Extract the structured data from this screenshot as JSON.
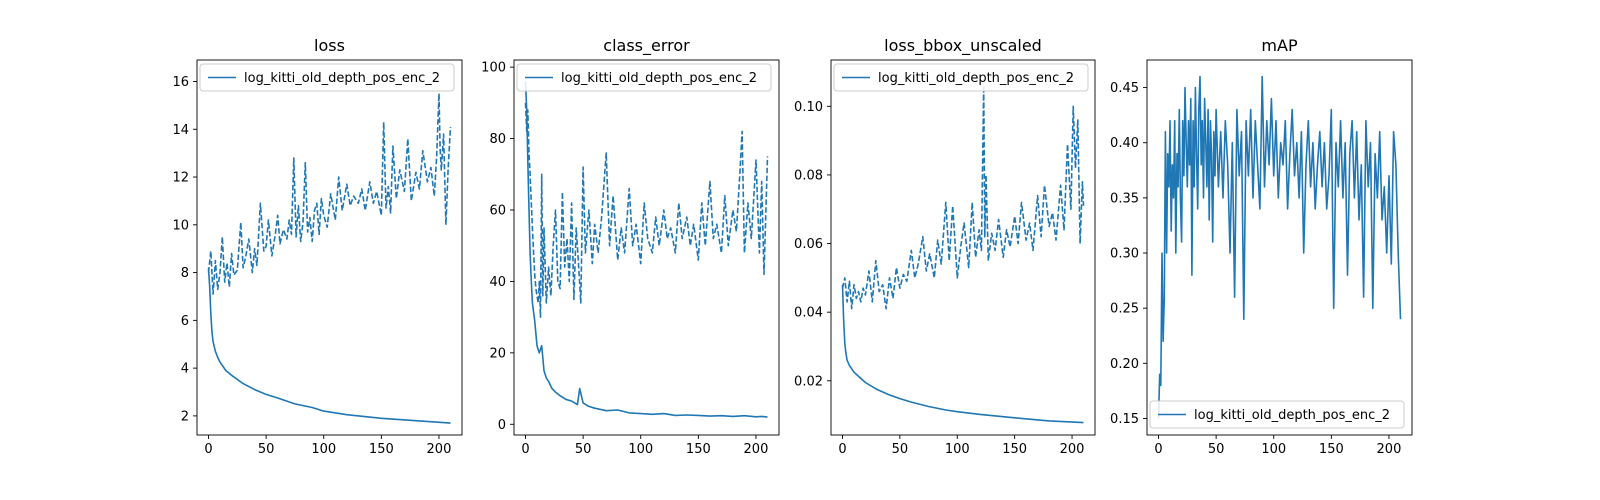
{
  "series_color": "#1f77b4",
  "chart_data": [
    {
      "type": "line",
      "title": "loss",
      "xlim": [
        -10,
        220
      ],
      "ylim": [
        1.2,
        16.9
      ],
      "xticks": [
        0,
        50,
        100,
        150,
        200
      ],
      "yticks": [
        2,
        4,
        6,
        8,
        10,
        12,
        14,
        16
      ],
      "legend": {
        "placement": "upper-left",
        "entries": [
          "log_kitti_old_depth_pos_enc_2"
        ]
      },
      "series": [
        {
          "name": "log_kitti_old_depth_pos_enc_2",
          "style": "solid",
          "x": [
            0,
            1,
            2,
            3,
            4,
            6,
            8,
            10,
            15,
            20,
            30,
            40,
            50,
            60,
            75,
            90,
            100,
            120,
            150,
            180,
            210
          ],
          "y": [
            8.2,
            7.4,
            6.3,
            5.5,
            5.1,
            4.7,
            4.45,
            4.25,
            3.9,
            3.7,
            3.35,
            3.1,
            2.9,
            2.75,
            2.5,
            2.35,
            2.2,
            2.05,
            1.9,
            1.8,
            1.7
          ]
        },
        {
          "name": "log_kitti_old_depth_pos_enc_2",
          "style": "dashed",
          "x": [
            0,
            2,
            4,
            6,
            8,
            10,
            12,
            14,
            16,
            18,
            20,
            22,
            25,
            28,
            30,
            32,
            35,
            38,
            40,
            42,
            45,
            48,
            50,
            52,
            55,
            58,
            60,
            62,
            65,
            68,
            70,
            72,
            74,
            76,
            78,
            80,
            82,
            84,
            86,
            88,
            90,
            92,
            94,
            96,
            98,
            100,
            103,
            106,
            110,
            113,
            116,
            120,
            123,
            126,
            130,
            133,
            136,
            140,
            143,
            146,
            150,
            152,
            154,
            156,
            158,
            160,
            163,
            166,
            170,
            173,
            176,
            180,
            183,
            186,
            190,
            193,
            196,
            198,
            200,
            201,
            202,
            204,
            206,
            208,
            210
          ],
          "y": [
            8.0,
            8.9,
            7.1,
            8.5,
            7.3,
            8.0,
            9.5,
            7.6,
            8.4,
            7.4,
            8.8,
            7.9,
            8.1,
            10.1,
            8.2,
            8.6,
            9.4,
            8.0,
            9.0,
            8.3,
            10.9,
            8.9,
            9.1,
            10.2,
            8.7,
            9.6,
            10.4,
            9.2,
            9.8,
            9.4,
            10.2,
            9.6,
            12.8,
            9.5,
            10.8,
            9.3,
            10.1,
            12.6,
            9.7,
            10.3,
            9.3,
            10.6,
            10.9,
            9.6,
            11.1,
            10.4,
            9.9,
            11.3,
            10.2,
            12.0,
            10.6,
            11.7,
            10.8,
            11.2,
            10.9,
            11.5,
            10.6,
            11.8,
            10.9,
            11.4,
            10.4,
            14.3,
            10.7,
            11.6,
            10.5,
            13.3,
            11.1,
            12.3,
            11.4,
            13.6,
            11.0,
            12.2,
            11.5,
            13.1,
            11.8,
            12.4,
            11.2,
            12.9,
            15.5,
            13.2,
            12.3,
            13.8,
            10.0,
            12.4,
            14.1
          ]
        }
      ]
    },
    {
      "type": "line",
      "title": "class_error",
      "xlim": [
        -10,
        220
      ],
      "ylim": [
        -3,
        102
      ],
      "xticks": [
        0,
        50,
        100,
        150,
        200
      ],
      "yticks": [
        0,
        20,
        40,
        60,
        80,
        100
      ],
      "legend": {
        "placement": "upper-right",
        "entries": [
          "log_kitti_old_depth_pos_enc_2"
        ]
      },
      "series": [
        {
          "name": "log_kitti_old_depth_pos_enc_2",
          "style": "solid",
          "x": [
            0,
            1,
            2,
            3,
            4,
            5,
            6,
            8,
            10,
            12,
            14,
            16,
            18,
            20,
            23,
            26,
            30,
            35,
            40,
            45,
            47,
            50,
            55,
            60,
            70,
            80,
            90,
            100,
            110,
            120,
            130,
            140,
            150,
            160,
            170,
            180,
            190,
            200,
            205,
            210
          ],
          "y": [
            96,
            88,
            74,
            60,
            48,
            40,
            34,
            29,
            22,
            20,
            22,
            15,
            13,
            12,
            10,
            9,
            8,
            7,
            6.5,
            5.5,
            10,
            6,
            5,
            4.5,
            3.8,
            4,
            3.2,
            3,
            2.8,
            3,
            2.5,
            2.6,
            2.5,
            2.3,
            2.4,
            2.2,
            2.4,
            2.1,
            2.2,
            2
          ]
        },
        {
          "name": "log_kitti_old_depth_pos_enc_2",
          "style": "dashed",
          "x": [
            0,
            1,
            2,
            3,
            4,
            5,
            6,
            7,
            8,
            9,
            10,
            11,
            12,
            13,
            14,
            15,
            16,
            18,
            20,
            22,
            24,
            26,
            28,
            30,
            32,
            34,
            36,
            38,
            40,
            42,
            44,
            46,
            48,
            50,
            52,
            55,
            58,
            60,
            63,
            66,
            70,
            73,
            76,
            80,
            83,
            86,
            90,
            93,
            96,
            100,
            103,
            106,
            110,
            113,
            116,
            120,
            123,
            126,
            130,
            133,
            136,
            140,
            143,
            146,
            150,
            153,
            156,
            160,
            163,
            166,
            170,
            173,
            176,
            180,
            183,
            186,
            188,
            190,
            193,
            196,
            200,
            203,
            205,
            207,
            210
          ],
          "y": [
            90,
            82,
            88,
            76,
            70,
            62,
            55,
            48,
            42,
            38,
            36,
            34,
            40,
            30,
            70,
            36,
            55,
            34,
            44,
            36,
            50,
            60,
            40,
            38,
            65,
            44,
            52,
            40,
            62,
            35,
            55,
            45,
            34,
            72,
            48,
            60,
            45,
            56,
            48,
            58,
            76,
            50,
            64,
            46,
            55,
            48,
            66,
            50,
            56,
            45,
            62,
            52,
            48,
            58,
            50,
            60,
            52,
            55,
            48,
            62,
            52,
            58,
            50,
            56,
            46,
            62,
            50,
            68,
            52,
            56,
            48,
            64,
            50,
            60,
            54,
            70,
            82,
            48,
            62,
            52,
            74,
            48,
            68,
            42,
            75
          ]
        }
      ]
    },
    {
      "type": "line",
      "title": "loss_bbox_unscaled",
      "xlim": [
        -10,
        220
      ],
      "ylim": [
        0.0042,
        0.1135
      ],
      "xticks": [
        0,
        50,
        100,
        150,
        200
      ],
      "yticks": [
        0.02,
        0.04,
        0.06,
        0.08,
        0.1
      ],
      "legend": {
        "placement": "upper-left",
        "entries": [
          "log_kitti_old_depth_pos_enc_2"
        ]
      },
      "series": [
        {
          "name": "log_kitti_old_depth_pos_enc_2",
          "style": "solid",
          "x": [
            0,
            1,
            2,
            3,
            4,
            6,
            8,
            10,
            15,
            20,
            30,
            40,
            50,
            60,
            75,
            90,
            100,
            120,
            150,
            180,
            210
          ],
          "y": [
            0.048,
            0.038,
            0.031,
            0.028,
            0.026,
            0.0245,
            0.0235,
            0.0225,
            0.021,
            0.0195,
            0.0175,
            0.016,
            0.0148,
            0.0138,
            0.0125,
            0.0115,
            0.011,
            0.0102,
            0.0092,
            0.0083,
            0.0078
          ]
        },
        {
          "name": "log_kitti_old_depth_pos_enc_2",
          "style": "dashed",
          "x": [
            0,
            2,
            4,
            6,
            8,
            10,
            12,
            14,
            16,
            18,
            20,
            23,
            26,
            29,
            32,
            35,
            38,
            41,
            44,
            47,
            50,
            53,
            56,
            60,
            63,
            66,
            70,
            73,
            76,
            80,
            83,
            86,
            90,
            93,
            96,
            100,
            103,
            106,
            110,
            113,
            116,
            119,
            121,
            122,
            123,
            124,
            125,
            127,
            130,
            133,
            136,
            140,
            143,
            146,
            150,
            153,
            156,
            160,
            163,
            166,
            170,
            173,
            176,
            180,
            183,
            186,
            190,
            193,
            196,
            199,
            201,
            203,
            205,
            207,
            209,
            210
          ],
          "y": [
            0.047,
            0.05,
            0.043,
            0.049,
            0.041,
            0.048,
            0.044,
            0.046,
            0.043,
            0.047,
            0.045,
            0.052,
            0.043,
            0.055,
            0.046,
            0.048,
            0.041,
            0.05,
            0.044,
            0.053,
            0.047,
            0.051,
            0.049,
            0.058,
            0.05,
            0.054,
            0.062,
            0.052,
            0.057,
            0.05,
            0.061,
            0.054,
            0.072,
            0.055,
            0.071,
            0.05,
            0.059,
            0.066,
            0.053,
            0.072,
            0.056,
            0.064,
            0.058,
            0.081,
            0.106,
            0.062,
            0.08,
            0.055,
            0.063,
            0.058,
            0.067,
            0.056,
            0.064,
            0.059,
            0.068,
            0.06,
            0.072,
            0.061,
            0.066,
            0.058,
            0.074,
            0.062,
            0.077,
            0.065,
            0.069,
            0.061,
            0.077,
            0.064,
            0.089,
            0.07,
            0.1,
            0.082,
            0.096,
            0.06,
            0.078,
            0.071
          ]
        }
      ]
    },
    {
      "type": "line",
      "title": "mAP",
      "xlim": [
        -10,
        220
      ],
      "ylim": [
        0.135,
        0.475
      ],
      "xticks": [
        0,
        50,
        100,
        150,
        200
      ],
      "yticks": [
        0.15,
        0.2,
        0.25,
        0.3,
        0.35,
        0.4,
        0.45
      ],
      "legend": {
        "placement": "lower-left",
        "entries": [
          "log_kitti_old_depth_pos_enc_2"
        ]
      },
      "series": [
        {
          "name": "log_kitti_old_depth_pos_enc_2",
          "style": "solid",
          "x": [
            0,
            1,
            2,
            3,
            4,
            5,
            6,
            7,
            8,
            9,
            10,
            11,
            12,
            13,
            14,
            15,
            16,
            17,
            18,
            19,
            20,
            21,
            22,
            23,
            24,
            25,
            26,
            27,
            28,
            29,
            30,
            31,
            32,
            33,
            34,
            35,
            36,
            37,
            38,
            39,
            40,
            41,
            42,
            43,
            44,
            45,
            46,
            47,
            48,
            49,
            50,
            52,
            54,
            56,
            58,
            60,
            62,
            64,
            66,
            68,
            70,
            72,
            74,
            76,
            78,
            80,
            82,
            84,
            86,
            88,
            90,
            92,
            94,
            96,
            98,
            100,
            102,
            104,
            106,
            108,
            110,
            112,
            114,
            116,
            118,
            120,
            122,
            124,
            126,
            128,
            130,
            132,
            134,
            136,
            138,
            140,
            142,
            144,
            146,
            148,
            150,
            152,
            154,
            156,
            158,
            160,
            162,
            164,
            166,
            168,
            170,
            172,
            174,
            176,
            178,
            180,
            182,
            184,
            186,
            188,
            190,
            192,
            194,
            196,
            198,
            200,
            202,
            204,
            206,
            208,
            210
          ],
          "y": [
            0.15,
            0.19,
            0.18,
            0.3,
            0.22,
            0.26,
            0.41,
            0.3,
            0.39,
            0.36,
            0.42,
            0.32,
            0.38,
            0.35,
            0.42,
            0.3,
            0.39,
            0.36,
            0.43,
            0.35,
            0.31,
            0.42,
            0.37,
            0.45,
            0.4,
            0.36,
            0.42,
            0.38,
            0.44,
            0.28,
            0.42,
            0.36,
            0.45,
            0.39,
            0.34,
            0.43,
            0.46,
            0.38,
            0.42,
            0.35,
            0.44,
            0.4,
            0.36,
            0.43,
            0.33,
            0.42,
            0.39,
            0.31,
            0.41,
            0.37,
            0.43,
            0.36,
            0.41,
            0.35,
            0.42,
            0.38,
            0.3,
            0.4,
            0.26,
            0.43,
            0.37,
            0.41,
            0.24,
            0.42,
            0.37,
            0.43,
            0.35,
            0.42,
            0.38,
            0.34,
            0.46,
            0.36,
            0.42,
            0.38,
            0.44,
            0.37,
            0.42,
            0.35,
            0.4,
            0.38,
            0.42,
            0.34,
            0.39,
            0.43,
            0.37,
            0.4,
            0.35,
            0.41,
            0.3,
            0.38,
            0.42,
            0.36,
            0.4,
            0.34,
            0.38,
            0.41,
            0.36,
            0.4,
            0.34,
            0.37,
            0.43,
            0.25,
            0.4,
            0.36,
            0.42,
            0.35,
            0.4,
            0.28,
            0.39,
            0.42,
            0.35,
            0.41,
            0.33,
            0.38,
            0.26,
            0.42,
            0.36,
            0.4,
            0.25,
            0.39,
            0.35,
            0.41,
            0.33,
            0.36,
            0.3,
            0.37,
            0.29,
            0.41,
            0.38,
            0.3,
            0.24
          ]
        }
      ]
    }
  ]
}
